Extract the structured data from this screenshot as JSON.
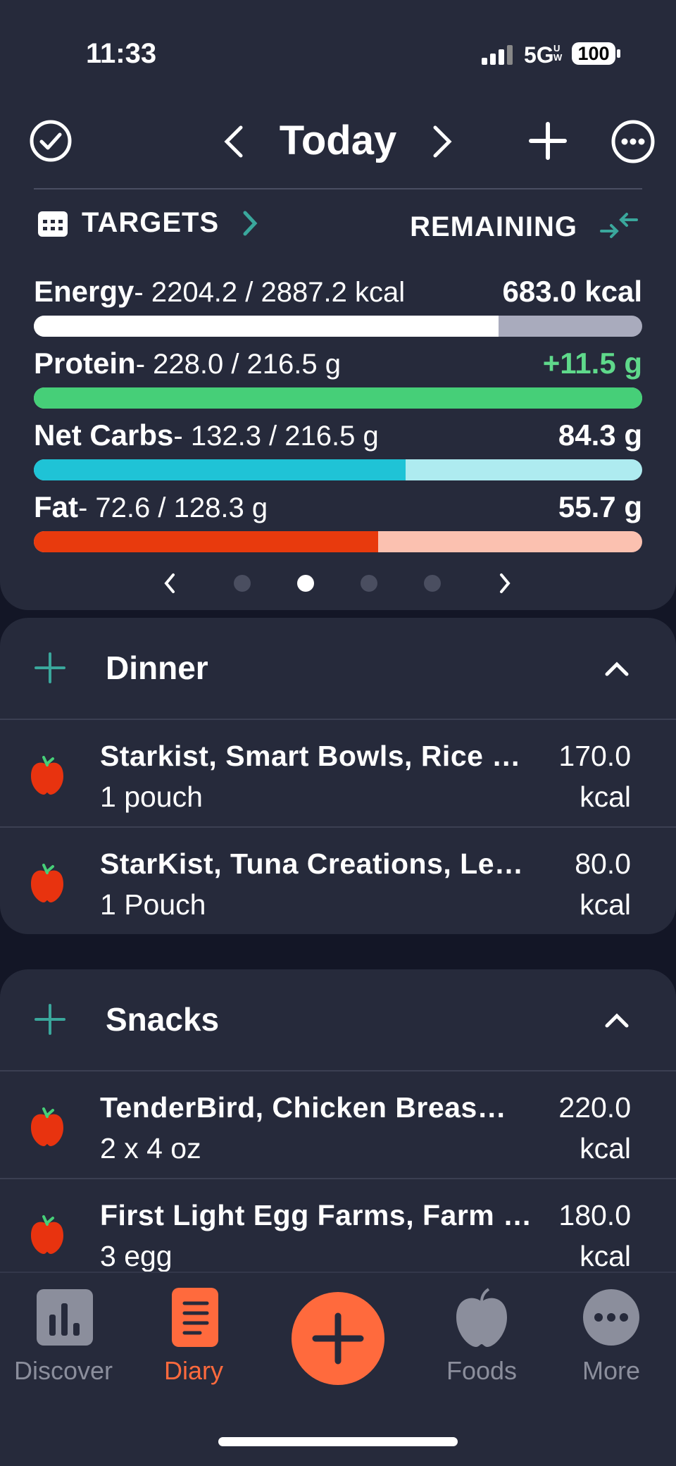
{
  "status": {
    "time": "11:33",
    "network": "5G",
    "network_suffix": "UW",
    "battery": "100"
  },
  "header": {
    "title": "Today"
  },
  "targets": {
    "label": "TARGETS",
    "mode": "REMAINING",
    "macros": [
      {
        "name": "Energy",
        "detail": "- 2204.2 / 2887.2 kcal",
        "remaining": "683.0 kcal",
        "consumed": 2204.2,
        "target": 2887.2,
        "color": "#ffffff",
        "track": "#a9abbd",
        "remaining_color": "#ffffff"
      },
      {
        "name": "Protein",
        "detail": "- 228.0 / 216.5 g",
        "remaining": "+11.5 g",
        "consumed": 228.0,
        "target": 216.5,
        "color": "#46cf78",
        "track": "#bdf0cf",
        "remaining_color": "#5fd98b"
      },
      {
        "name": "Net Carbs",
        "detail": "- 132.3 / 216.5 g",
        "remaining": "84.3 g",
        "consumed": 132.3,
        "target": 216.5,
        "color": "#1fc3d6",
        "track": "#aeebf0",
        "remaining_color": "#ffffff"
      },
      {
        "name": "Fat",
        "detail": "- 72.6 / 128.3 g",
        "remaining": "55.7 g",
        "consumed": 72.6,
        "target": 128.3,
        "color": "#e83a0d",
        "track": "#fbc1b0",
        "remaining_color": "#ffffff"
      }
    ]
  },
  "meals": [
    {
      "name": "Dinner",
      "items": [
        {
          "name": "Starkist, Smart Bowls, Rice …",
          "amount": "1 pouch",
          "calories": "170.0",
          "unit": "kcal"
        },
        {
          "name": "StarKist, Tuna Creations, Le…",
          "amount": "1 Pouch",
          "calories": "80.0",
          "unit": "kcal"
        }
      ]
    },
    {
      "name": "Snacks",
      "items": [
        {
          "name": "TenderBird, Chicken Breas…",
          "amount": "2 x 4 oz",
          "calories": "220.0",
          "unit": "kcal"
        },
        {
          "name": "First Light Egg Farms, Farm …",
          "amount": "3 egg",
          "calories": "180.0",
          "unit": "kcal"
        }
      ]
    }
  ],
  "tabs": [
    "Discover",
    "Diary",
    "Foods",
    "More"
  ]
}
